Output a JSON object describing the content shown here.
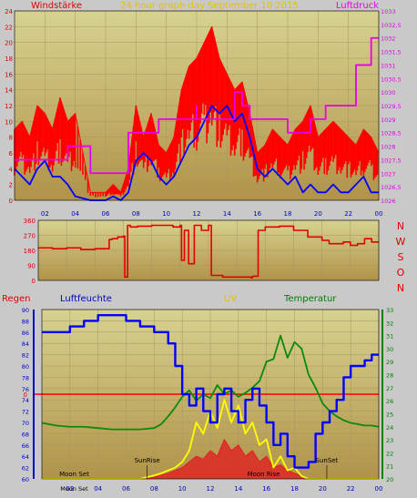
{
  "colors": {
    "bg": "#c9c9c9",
    "plot_top": "#d7d290",
    "plot_bottom": "#b19349",
    "grid": "#a49764",
    "wind_gust": "#ff0000",
    "wind_avg": "#0000ff",
    "pressure": "#e600e6",
    "direction": "#e00000",
    "humidity": "#0000ff",
    "temperature": "#0a8a0a",
    "uv": "#ffff00",
    "solar": "#e02020",
    "rain": "#ff0000",
    "label_blue": "#0000c8",
    "label_yellow": "#e6c000",
    "label_green": "#008000"
  },
  "chart_data": [
    {
      "type": "line",
      "title": "24 hour graph day   September 10 2015",
      "left_label": "Windstärke",
      "right_label": "Luftdruck",
      "x_ticks": [
        "02",
        "04",
        "06",
        "08",
        "10",
        "12",
        "14",
        "16",
        "18",
        "20",
        "22",
        "00"
      ],
      "xlim": [
        0,
        24
      ],
      "ylim_left": [
        0,
        24
      ],
      "y_ticks_left": [
        "0",
        "2",
        "4",
        "6",
        "8",
        "10",
        "12",
        "14",
        "16",
        "18",
        "20",
        "22",
        "24"
      ],
      "ylim_right": [
        1026,
        1033
      ],
      "y_ticks_right": [
        "1026",
        "1026,5",
        "1027",
        "1027,5",
        "1028",
        "1028,5",
        "1029",
        "1029,5",
        "1030",
        "1030,5",
        "1031",
        "1031,5",
        "1032",
        "1032,5",
        "1033"
      ],
      "series": [
        {
          "role": "gust",
          "x": [
            0,
            0.5,
            1,
            1.5,
            2,
            2.5,
            3,
            3.5,
            4,
            5,
            6,
            6.5,
            7,
            7.5,
            8,
            8.5,
            9,
            9.5,
            10,
            10.5,
            11,
            11.5,
            12,
            12.5,
            13,
            13.5,
            14,
            14.5,
            15,
            15.5,
            16,
            16.5,
            17,
            17.5,
            18,
            18.5,
            19,
            19.5,
            20,
            20.5,
            21,
            21.5,
            22,
            22.5,
            23,
            23.5,
            24
          ],
          "y": [
            9,
            10,
            8,
            12,
            11,
            9,
            13,
            10,
            11,
            1,
            1,
            2,
            1,
            4,
            12,
            8,
            11,
            7,
            6,
            8,
            14,
            17,
            18,
            20,
            22,
            18,
            16,
            14,
            15,
            11,
            6,
            7,
            9,
            8,
            7,
            9,
            10,
            12,
            8,
            9,
            10,
            9,
            8,
            7,
            9,
            8,
            6
          ]
        },
        {
          "role": "average",
          "x": [
            0,
            0.5,
            1,
            1.5,
            2,
            2.5,
            3,
            3.5,
            4,
            5,
            6,
            6.5,
            7,
            7.5,
            8,
            8.5,
            9,
            9.5,
            10,
            10.5,
            11,
            11.5,
            12,
            12.5,
            13,
            13.5,
            14,
            14.5,
            15,
            15.5,
            16,
            16.5,
            17,
            17.5,
            18,
            18.5,
            19,
            19.5,
            20,
            20.5,
            21,
            21.5,
            22,
            22.5,
            23,
            23.5,
            24
          ],
          "y": [
            4,
            3,
            2,
            4,
            5,
            3,
            3,
            2,
            0.5,
            0,
            0,
            0.5,
            0,
            1,
            5,
            6,
            5,
            3,
            2,
            3,
            5,
            7,
            8,
            10,
            12,
            11,
            12,
            10,
            11,
            8,
            4,
            3,
            4,
            3,
            2,
            3,
            1,
            2,
            1,
            1,
            2,
            1,
            1,
            2,
            3,
            1,
            1
          ]
        },
        {
          "role": "pressure",
          "axis": "right",
          "x": [
            0,
            1,
            1.5,
            3,
            3.5,
            5,
            5.5,
            7,
            7.5,
            9,
            9.5,
            10,
            11,
            12,
            12,
            13,
            13.5,
            14,
            14.5,
            15,
            15.5,
            17,
            17.5,
            18,
            19,
            19.5,
            20,
            20.5,
            22,
            22.5,
            23,
            23.5,
            24
          ],
          "y": [
            1027.5,
            1027.5,
            1027.5,
            1027.5,
            1028,
            1027,
            1027,
            1027,
            1028.5,
            1028.5,
            1029,
            1029,
            1029,
            1029.5,
            1029,
            1029,
            1029,
            1029,
            1030,
            1029.5,
            1029,
            1029,
            1029,
            1028.5,
            1028.5,
            1029,
            1029,
            1029.5,
            1029.5,
            1031,
            1031,
            1032,
            1032
          ]
        }
      ]
    },
    {
      "type": "line",
      "right_letters": [
        "N",
        "W",
        "S",
        "O",
        "N"
      ],
      "x_ticks": [
        "02",
        "04",
        "06",
        "08",
        "10",
        "12",
        "14",
        "16",
        "18",
        "20",
        "22",
        "00"
      ],
      "xlim": [
        0,
        24
      ],
      "ylim": [
        0,
        360
      ],
      "y_ticks": [
        "0",
        "90",
        "180",
        "270",
        "360"
      ],
      "series": [
        {
          "role": "direction",
          "x": [
            0,
            1,
            2,
            3,
            4,
            5,
            5.2,
            5.6,
            6,
            6.1,
            6.3,
            6.5,
            7,
            8,
            8.2,
            8.5,
            9,
            9.5,
            10,
            10.1,
            10.3,
            10.6,
            11,
            11.2,
            11.5,
            12,
            12.2,
            13,
            14,
            15,
            15.1,
            15.5,
            16,
            17,
            18,
            19,
            20,
            20.5,
            21,
            21.5,
            22,
            22.5,
            23,
            23.5,
            24
          ],
          "y": [
            195,
            190,
            195,
            185,
            190,
            245,
            250,
            260,
            265,
            20,
            330,
            320,
            325,
            330,
            330,
            330,
            330,
            320,
            330,
            120,
            300,
            100,
            330,
            330,
            300,
            330,
            30,
            20,
            20,
            15,
            25,
            300,
            320,
            325,
            300,
            260,
            240,
            220,
            220,
            230,
            210,
            220,
            250,
            230,
            230
          ]
        }
      ]
    },
    {
      "type": "line",
      "left_label": "Regen",
      "labels": [
        "Luftfeuchte",
        "UV",
        "Temperatur"
      ],
      "x_ticks": [
        "02",
        "04",
        "06",
        "08",
        "10",
        "12",
        "14",
        "16",
        "18",
        "20",
        "22",
        "00"
      ],
      "xlim": [
        0,
        24
      ],
      "ylim_left": [
        60,
        90
      ],
      "y_ticks_left": [
        "60",
        "62",
        "64",
        "66",
        "68",
        "70",
        "72",
        "74",
        "76",
        "78",
        "80",
        "82",
        "84",
        "86",
        "88",
        "90"
      ],
      "ylim_right": [
        20,
        33
      ],
      "y_ticks_right": [
        "20",
        "21",
        "22",
        "23",
        "24",
        "25",
        "26",
        "27",
        "28",
        "29",
        "30",
        "31",
        "32",
        "33"
      ],
      "rain_axis_label": "0",
      "rain_value": 0,
      "rain_axis_value": 75,
      "annotations": [
        {
          "text": "Moon Set",
          "x": 2.3
        },
        {
          "text": "SunRise",
          "x": 7.5
        },
        {
          "text": "Moon Rise",
          "x": 15.8
        },
        {
          "text": "SunSet",
          "x": 20.3
        },
        {
          "text": "Moon Set",
          "x": 2.3,
          "row": "below"
        }
      ],
      "series": [
        {
          "role": "humidity",
          "axis": "left",
          "x": [
            0,
            1,
            2,
            3,
            4,
            5,
            6,
            7,
            7.5,
            8,
            9,
            9.5,
            10,
            10.5,
            11,
            11.5,
            12,
            12.5,
            13,
            13.5,
            14,
            14.5,
            15,
            15.5,
            16,
            16.5,
            17,
            17.5,
            18,
            18.5,
            19,
            19.5,
            20,
            20.5,
            21,
            21.5,
            22,
            22.5,
            23,
            23.5,
            24
          ],
          "y": [
            86,
            86,
            87,
            88,
            89,
            89,
            88,
            87,
            87,
            86,
            84,
            80,
            75,
            73,
            76,
            72,
            70,
            75,
            76,
            72,
            70,
            74,
            76,
            73,
            70,
            66,
            68,
            64,
            62,
            62,
            63,
            68,
            70,
            72,
            74,
            78,
            80,
            80,
            81,
            82,
            82
          ]
        },
        {
          "role": "temperature",
          "axis": "right",
          "x": [
            0,
            1,
            2,
            3,
            4,
            5,
            6,
            7,
            8,
            8.5,
            9,
            9.5,
            10,
            10.5,
            11,
            11.5,
            12,
            12.5,
            13,
            13.5,
            14,
            14.5,
            15,
            15.5,
            16,
            16.5,
            17,
            17.5,
            18,
            18.5,
            19,
            19.5,
            20,
            20.5,
            21,
            21.5,
            22,
            22.5,
            23,
            23.5,
            24
          ],
          "y": [
            24.3,
            24.1,
            24,
            24,
            23.9,
            23.8,
            23.8,
            23.8,
            23.9,
            24.2,
            24.8,
            25.5,
            26.3,
            26.8,
            26,
            26.5,
            26.2,
            27.2,
            26.5,
            26.8,
            26.3,
            26.6,
            27,
            27.5,
            29,
            29.2,
            31,
            29.3,
            30.5,
            30,
            28,
            27,
            25.8,
            25.2,
            24.8,
            24.5,
            24.3,
            24.2,
            24.1,
            24.1,
            24
          ]
        },
        {
          "role": "uv",
          "axis": "left",
          "x": [
            0,
            7,
            7.5,
            8,
            8.5,
            9,
            9.5,
            10,
            10.5,
            11,
            11.5,
            12,
            12.5,
            13,
            13.5,
            14,
            14.5,
            15,
            15.5,
            16,
            16.5,
            17,
            17.5,
            18,
            18.5,
            19,
            24
          ],
          "y": [
            60,
            60,
            60.3,
            60.6,
            61,
            61.5,
            62,
            63,
            65,
            70,
            68,
            72,
            69,
            74,
            70,
            73,
            68,
            70,
            66,
            67,
            62,
            64,
            61.5,
            62,
            60.5,
            60,
            60
          ]
        },
        {
          "role": "solar",
          "axis": "left",
          "x": [
            0,
            7,
            8,
            9,
            10,
            10.5,
            11,
            11.5,
            12,
            12.5,
            13,
            13.5,
            14,
            14.5,
            15,
            15.5,
            16,
            16.5,
            17,
            17.5,
            18,
            19,
            24
          ],
          "y": [
            60,
            60,
            60.3,
            61,
            62,
            63,
            64,
            63.5,
            65,
            64,
            67,
            65,
            66,
            64,
            65,
            63,
            64,
            62,
            62.5,
            61.5,
            61,
            60,
            60
          ]
        }
      ]
    }
  ]
}
